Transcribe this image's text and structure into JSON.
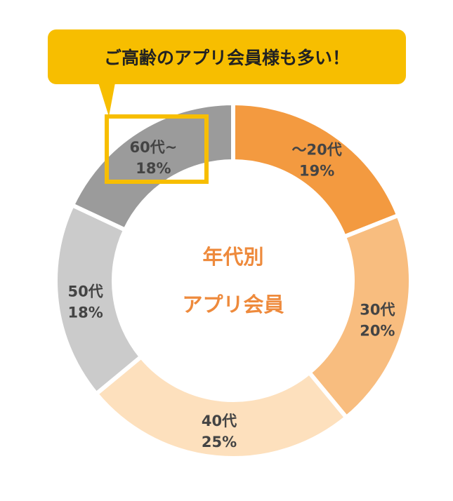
{
  "callout": {
    "text": "ご高齢のアプリ会員様も多い！",
    "color": "#f7be00"
  },
  "chart_data": {
    "type": "pie",
    "donut": true,
    "center_title": [
      "年代別",
      "アプリ会員"
    ],
    "categories": [
      "～20代",
      "30代",
      "40代",
      "50代",
      "60代~"
    ],
    "values": [
      19,
      20,
      25,
      18,
      18
    ],
    "value_labels": [
      "19%",
      "20%",
      "25%",
      "18%",
      "18%"
    ],
    "colors": [
      "#f39a40",
      "#f8bd7f",
      "#fde0bd",
      "#cbcbcb",
      "#9b9b9b"
    ],
    "highlight": "60代~"
  }
}
